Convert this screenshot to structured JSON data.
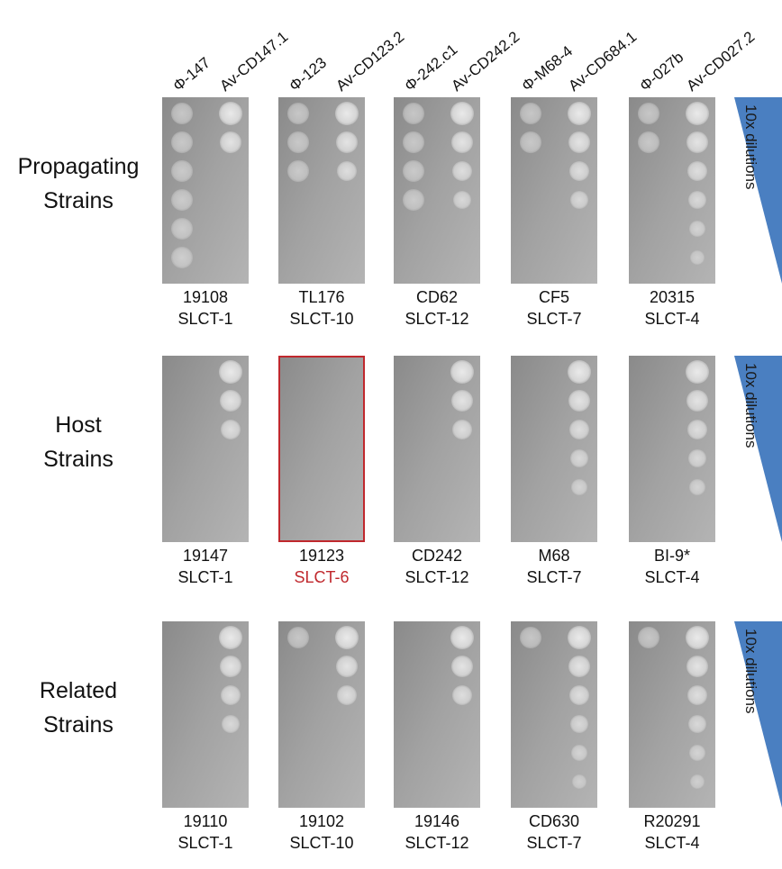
{
  "column_headers": [
    "Φ-147",
    "Av-CD147.1",
    "Φ-123",
    "Av-CD123.2",
    "Φ-242.c1",
    "Av-CD242.2",
    "Φ-M68-4",
    "Av-CD684.1",
    "Φ-027b",
    "Av-CD027.2"
  ],
  "rows": [
    {
      "label": [
        "Propagating",
        "Strains"
      ],
      "dilution_label": "10x dilutions",
      "panels": [
        {
          "strain": "19108",
          "slct": "SLCT-1"
        },
        {
          "strain": "TL176",
          "slct": "SLCT-10"
        },
        {
          "strain": "CD62",
          "slct": "SLCT-12"
        },
        {
          "strain": "CF5",
          "slct": "SLCT-7"
        },
        {
          "strain": "20315",
          "slct": "SLCT-4"
        }
      ]
    },
    {
      "label": [
        "Host",
        "Strains"
      ],
      "dilution_label": "10x dilutions",
      "panels": [
        {
          "strain": "19147",
          "slct": "SLCT-1"
        },
        {
          "strain": "19123",
          "slct": "SLCT-6",
          "highlighted": true
        },
        {
          "strain": "CD242",
          "slct": "SLCT-12"
        },
        {
          "strain": "M68",
          "slct": "SLCT-7"
        },
        {
          "strain": "BI-9*",
          "slct": "SLCT-4"
        }
      ]
    },
    {
      "label": [
        "Related",
        "Strains"
      ],
      "dilution_label": "10x dilutions",
      "panels": [
        {
          "strain": "19110",
          "slct": "SLCT-1"
        },
        {
          "strain": "19102",
          "slct": "SLCT-10"
        },
        {
          "strain": "19146",
          "slct": "SLCT-12"
        },
        {
          "strain": "CD630",
          "slct": "SLCT-7"
        },
        {
          "strain": "R20291",
          "slct": "SLCT-4"
        }
      ]
    }
  ]
}
